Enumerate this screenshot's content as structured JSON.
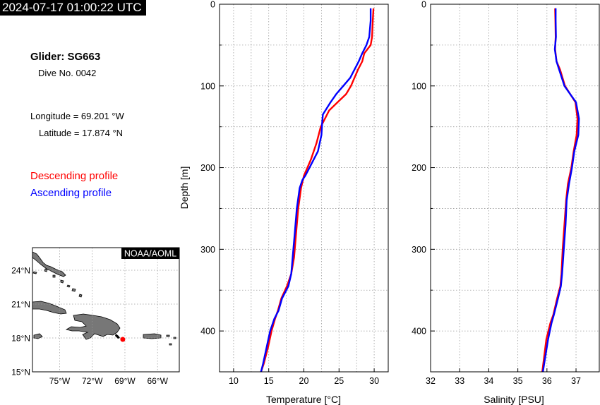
{
  "header": {
    "timestamp": "2024-07-17 01:00:22 UTC"
  },
  "info": {
    "glider": "Glider: SG663",
    "dive": "Dive No. 0042",
    "longitude": "Longitude = 69.201 °W",
    "latitude": "Latitude = 17.874 °N"
  },
  "legend": {
    "descending": "Descending profile",
    "ascending": "Ascending profile",
    "descending_color": "#ff0000",
    "ascending_color": "#0000ff"
  },
  "map": {
    "credit": "NOAA/AOML",
    "lat_ticks": [
      "24°N",
      "21°N",
      "18°N",
      "15°N"
    ],
    "lon_ticks": [
      "75°W",
      "72°W",
      "69°W",
      "66°W"
    ],
    "lat_range": [
      15,
      26
    ],
    "lon_range": [
      -77.5,
      -64
    ],
    "glider_position": {
      "lon": -69.201,
      "lat": 17.874
    },
    "land_color": "#777777",
    "marker_color": "#ff0000"
  },
  "chart_data": [
    {
      "type": "line",
      "xlabel": "Temperature [°C]",
      "ylabel": "Depth [m]",
      "xlim": [
        8,
        32
      ],
      "ylim": [
        450,
        0
      ],
      "xticks": [
        10,
        15,
        20,
        25,
        30
      ],
      "yticks": [
        0,
        100,
        200,
        300,
        400
      ],
      "grid": true,
      "series": [
        {
          "name": "Descending profile",
          "color": "#ff0000",
          "x": [
            29.9,
            29.8,
            29.7,
            29.5,
            28.6,
            28.3,
            27.7,
            27.2,
            26.7,
            26.0,
            24.8,
            23.6,
            23.0,
            22.4,
            21.8,
            21.0,
            20.5,
            20.0,
            19.6,
            19.2,
            18.9,
            18.6,
            18.2,
            17.6,
            16.8,
            16.3,
            15.9,
            15.4,
            14.9,
            14.3,
            13.9
          ],
          "y": [
            5,
            20,
            40,
            50,
            60,
            70,
            80,
            90,
            100,
            110,
            120,
            130,
            140,
            150,
            170,
            190,
            200,
            210,
            225,
            250,
            280,
            310,
            330,
            345,
            360,
            375,
            385,
            400,
            420,
            440,
            450
          ]
        },
        {
          "name": "Ascending profile",
          "color": "#0000ff",
          "x": [
            29.5,
            29.5,
            29.3,
            28.9,
            28.3,
            27.8,
            27.2,
            26.6,
            25.6,
            24.6,
            23.8,
            22.7,
            22.6,
            22.5,
            22.0,
            20.8,
            20.2,
            19.8,
            19.4,
            19.0,
            18.7,
            18.4,
            18.2,
            17.8,
            16.9,
            16.4,
            15.8,
            15.2,
            14.7,
            14.2,
            13.9
          ],
          "y": [
            5,
            20,
            40,
            50,
            60,
            70,
            80,
            90,
            100,
            110,
            120,
            135,
            145,
            160,
            180,
            200,
            210,
            215,
            225,
            250,
            280,
            310,
            330,
            345,
            360,
            375,
            385,
            400,
            420,
            440,
            450
          ]
        }
      ]
    },
    {
      "type": "line",
      "xlabel": "Salinity [PSU]",
      "ylabel": "",
      "xlim": [
        32,
        37.8
      ],
      "ylim": [
        450,
        0
      ],
      "xticks": [
        32,
        33,
        34,
        35,
        36,
        37
      ],
      "yticks": [
        0,
        100,
        200,
        300,
        400
      ],
      "grid": true,
      "series": [
        {
          "name": "Descending profile",
          "color": "#ff0000",
          "x": [
            36.28,
            36.29,
            36.3,
            36.28,
            36.33,
            36.45,
            36.62,
            36.8,
            36.98,
            37.05,
            37.02,
            36.92,
            36.84,
            36.72,
            36.66,
            36.6,
            36.54,
            36.5,
            36.46,
            36.35,
            36.22,
            36.12,
            35.98,
            35.84
          ],
          "y": [
            5,
            20,
            40,
            55,
            70,
            80,
            100,
            110,
            120,
            140,
            160,
            180,
            200,
            220,
            240,
            270,
            300,
            330,
            345,
            360,
            380,
            390,
            410,
            450
          ]
        },
        {
          "name": "Ascending profile",
          "color": "#0000ff",
          "x": [
            36.3,
            36.3,
            36.31,
            36.27,
            36.33,
            36.42,
            36.6,
            36.8,
            37.0,
            37.1,
            37.08,
            36.94,
            36.86,
            36.76,
            36.68,
            36.64,
            36.58,
            36.52,
            36.48,
            36.38,
            36.24,
            36.16,
            36.04,
            35.86
          ],
          "y": [
            5,
            20,
            40,
            55,
            70,
            80,
            100,
            110,
            120,
            140,
            160,
            180,
            200,
            220,
            240,
            270,
            300,
            330,
            345,
            360,
            380,
            390,
            410,
            450
          ]
        }
      ]
    }
  ]
}
